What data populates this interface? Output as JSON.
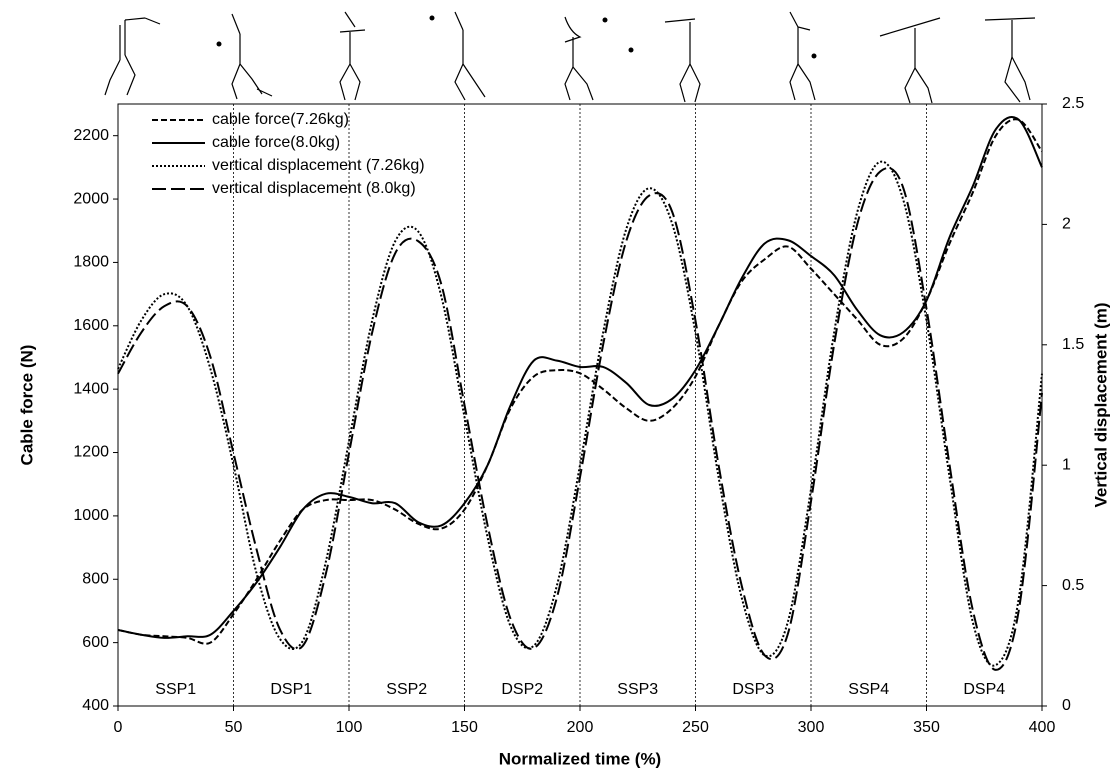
{
  "chart_data": {
    "type": "line",
    "xlabel": "Normalized time (%)",
    "ylabel": "Cable force (N)",
    "y2label": "Vertical displacement (m)",
    "x": [
      0,
      10,
      20,
      30,
      40,
      50,
      60,
      70,
      80,
      90,
      100,
      110,
      120,
      130,
      140,
      150,
      160,
      170,
      180,
      190,
      200,
      210,
      220,
      230,
      240,
      250,
      260,
      270,
      280,
      290,
      300,
      310,
      320,
      330,
      340,
      350,
      360,
      370,
      380,
      390,
      400
    ],
    "xlim": [
      0,
      400
    ],
    "xticks": [
      0,
      50,
      100,
      150,
      200,
      250,
      300,
      350,
      400
    ],
    "ylim": [
      400,
      2300
    ],
    "yticks": [
      400,
      600,
      800,
      1000,
      1200,
      1400,
      1600,
      1800,
      2000,
      2200
    ],
    "y2lim": [
      0,
      2.5
    ],
    "y2ticks": [
      0,
      0.5,
      1,
      1.5,
      2,
      2.5
    ],
    "legend": "upper left",
    "phase_lines": [
      50,
      100,
      150,
      200,
      250,
      300,
      350
    ],
    "phases": [
      "SSP1",
      "DSP1",
      "SSP2",
      "DSP2",
      "SSP3",
      "DSP3",
      "SSP4",
      "DSP4"
    ],
    "series": [
      {
        "name": "cable force(7.26kg)",
        "color": "#000000",
        "dash": "6,3",
        "values": [
          640,
          625,
          620,
          615,
          600,
          690,
          800,
          920,
          1020,
          1050,
          1050,
          1050,
          1020,
          975,
          960,
          1020,
          1160,
          1340,
          1440,
          1460,
          1450,
          1400,
          1340,
          1300,
          1340,
          1440,
          1600,
          1740,
          1810,
          1850,
          1780,
          1700,
          1620,
          1540,
          1560,
          1680,
          1860,
          2020,
          2200,
          2250,
          2150
        ]
      },
      {
        "name": "cable force(8.0kg)",
        "color": "#000000",
        "dash": "none",
        "values": [
          640,
          625,
          615,
          620,
          625,
          700,
          790,
          900,
          1020,
          1070,
          1060,
          1040,
          1040,
          980,
          970,
          1040,
          1160,
          1350,
          1490,
          1490,
          1470,
          1470,
          1420,
          1350,
          1370,
          1460,
          1600,
          1750,
          1860,
          1870,
          1820,
          1760,
          1650,
          1570,
          1580,
          1680,
          1880,
          2040,
          2220,
          2250,
          2100
        ]
      },
      {
        "name": "vertical displacement (7.26kg)",
        "color": "#000000",
        "dash": "2,2",
        "axis": "y2",
        "values": [
          1.4,
          1.6,
          1.71,
          1.66,
          1.4,
          1.0,
          0.55,
          0.28,
          0.27,
          0.6,
          1.1,
          1.6,
          1.93,
          1.97,
          1.7,
          1.2,
          0.7,
          0.33,
          0.25,
          0.5,
          1.0,
          1.55,
          1.98,
          2.15,
          2.0,
          1.55,
          0.95,
          0.45,
          0.21,
          0.35,
          0.9,
          1.55,
          2.05,
          2.26,
          2.1,
          1.6,
          0.95,
          0.35,
          0.17,
          0.45,
          1.38
        ]
      },
      {
        "name": "vertical displacement (8.0kg)",
        "color": "#000000",
        "dash": "14,5",
        "axis": "y2",
        "values": [
          1.38,
          1.55,
          1.66,
          1.66,
          1.45,
          1.05,
          0.65,
          0.32,
          0.25,
          0.55,
          1.05,
          1.55,
          1.88,
          1.93,
          1.75,
          1.25,
          0.75,
          0.36,
          0.24,
          0.45,
          0.95,
          1.5,
          1.93,
          2.12,
          2.05,
          1.6,
          1.0,
          0.5,
          0.21,
          0.3,
          0.85,
          1.5,
          2.0,
          2.22,
          2.15,
          1.65,
          1.0,
          0.4,
          0.15,
          0.4,
          1.3
        ]
      }
    ]
  }
}
